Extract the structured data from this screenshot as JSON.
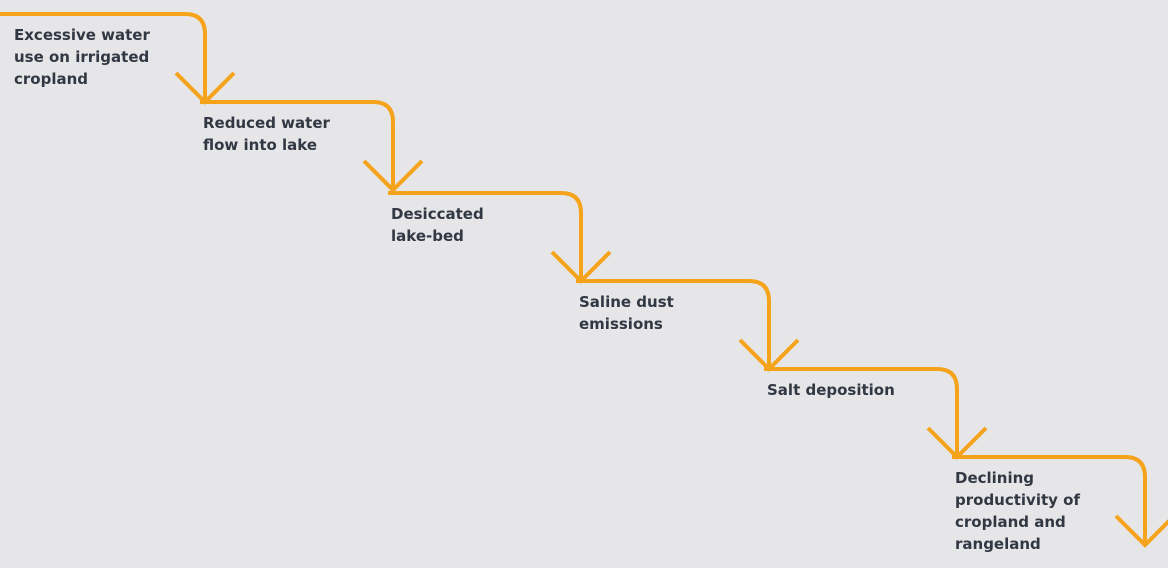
{
  "steps": [
    {
      "lines": [
        "Excessive water",
        "use on irrigated",
        "cropland"
      ]
    },
    {
      "lines": [
        "Reduced water",
        "flow into lake"
      ]
    },
    {
      "lines": [
        "Desiccated",
        "lake-bed"
      ]
    },
    {
      "lines": [
        "Saline dust",
        "emissions"
      ]
    },
    {
      "lines": [
        "Salt deposition"
      ]
    },
    {
      "lines": [
        "Declining",
        "productivity of",
        "cropland and",
        "rangeland"
      ]
    }
  ]
}
